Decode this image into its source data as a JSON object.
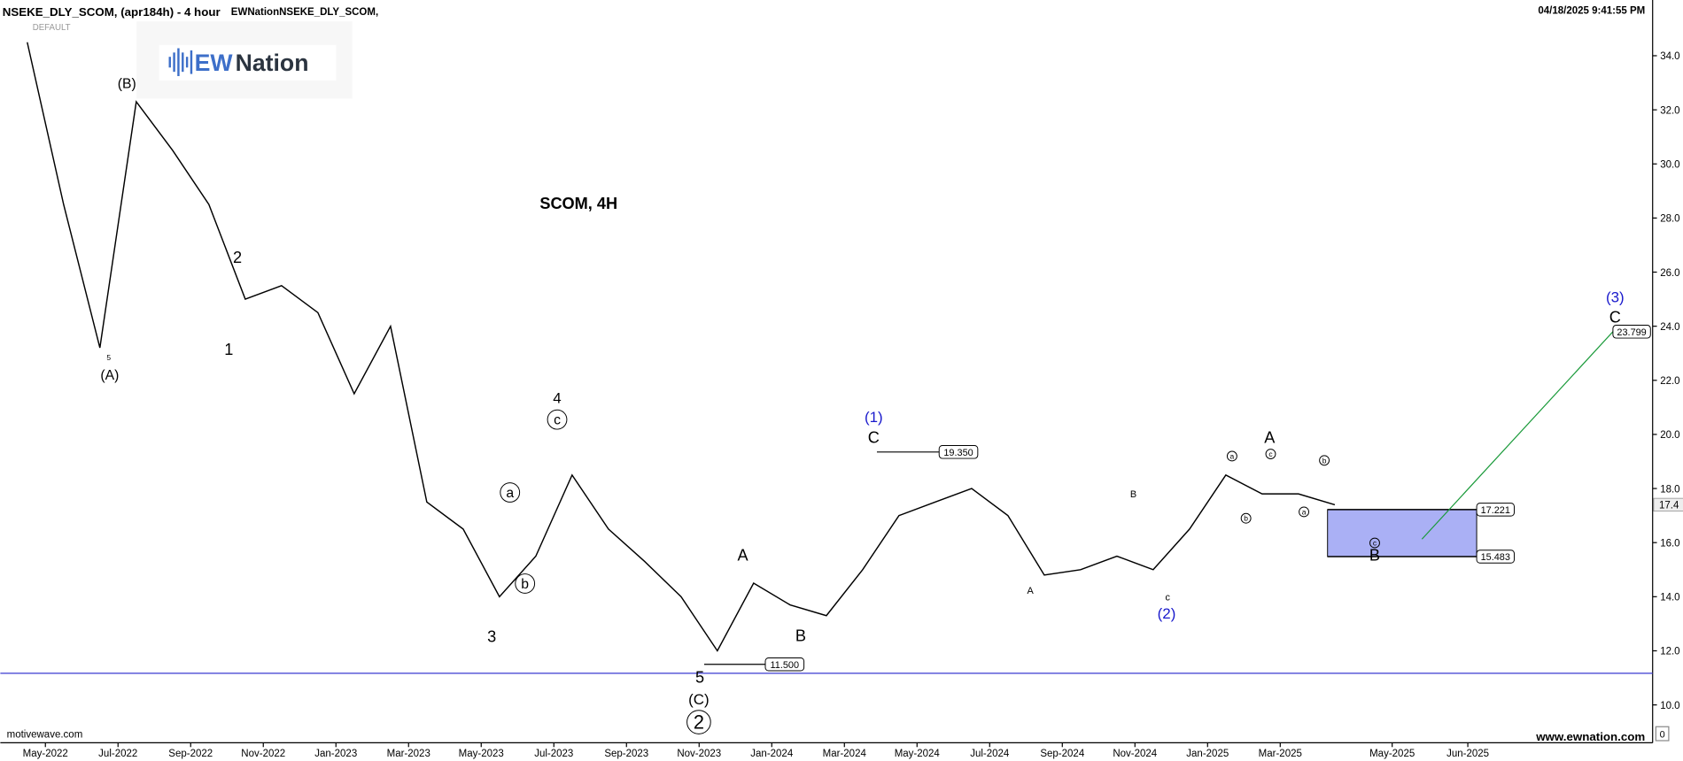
{
  "header": {
    "symbol": "NSEKE_DLY_SCOM, (apr184h) - 4 hour",
    "study": "EWNationNSEKE_DLY_SCOM,",
    "timestamp": "04/18/2025 9:41:55 PM",
    "template": "DEFAULT"
  },
  "logo": {
    "ew": "EW",
    "nation": "Nation"
  },
  "footer": {
    "left": "motivewave.com",
    "right": "www.ewnation.com",
    "corner": "0"
  },
  "chart_data": {
    "type": "line",
    "title": "SCOM, 4H",
    "color": "#000000",
    "x": [
      "2022-04",
      "2022-05",
      "2022-06",
      "2022-07",
      "2022-08",
      "2022-09",
      "2022-10",
      "2022-11",
      "2022-12",
      "2023-01",
      "2023-02",
      "2023-03",
      "2023-04",
      "2023-05",
      "2023-06",
      "2023-07",
      "2023-08",
      "2023-09",
      "2023-10",
      "2023-11",
      "2023-12",
      "2024-01",
      "2024-02",
      "2024-03",
      "2024-04",
      "2024-05",
      "2024-06",
      "2024-07",
      "2024-08",
      "2024-09",
      "2024-10",
      "2024-11",
      "2024-12",
      "2025-01",
      "2025-02",
      "2025-03",
      "2025-04"
    ],
    "values": [
      34.5,
      28.5,
      23.2,
      32.3,
      30.5,
      28.5,
      25.0,
      25.5,
      24.5,
      21.5,
      24.0,
      17.5,
      16.5,
      14.0,
      15.5,
      18.5,
      16.5,
      15.3,
      14.0,
      12.0,
      14.5,
      13.7,
      13.3,
      15.0,
      17.0,
      17.5,
      18.0,
      17.0,
      14.8,
      15.0,
      15.5,
      15.0,
      16.5,
      18.5,
      17.8,
      17.8,
      17.4
    ],
    "ylim": [
      8.6,
      36.06
    ],
    "yticks": [
      {
        "value": 10,
        "label": "10.0"
      },
      {
        "value": 12,
        "label": "12.0"
      },
      {
        "value": 14,
        "label": "14.0"
      },
      {
        "value": 16,
        "label": "16.0"
      },
      {
        "value": 18,
        "label": "18.0"
      },
      {
        "value": 20,
        "label": "20.0"
      },
      {
        "value": 22,
        "label": "22.0"
      },
      {
        "value": 24,
        "label": "24.0"
      },
      {
        "value": 26,
        "label": "26.0"
      },
      {
        "value": 28,
        "label": "28.0"
      },
      {
        "value": 30,
        "label": "30.0"
      },
      {
        "value": 32,
        "label": "32.0"
      },
      {
        "value": 34,
        "label": "34.0"
      }
    ],
    "xticks": [
      {
        "value": "2022-05",
        "label": "May-2022"
      },
      {
        "value": "2022-07",
        "label": "Jul-2022"
      },
      {
        "value": "2022-09",
        "label": "Sep-2022"
      },
      {
        "value": "2022-11",
        "label": "Nov-2022"
      },
      {
        "value": "2023-01",
        "label": "Jan-2023"
      },
      {
        "value": "2023-03",
        "label": "Mar-2023"
      },
      {
        "value": "2023-05",
        "label": "May-2023"
      },
      {
        "value": "2023-07",
        "label": "Jul-2023"
      },
      {
        "value": "2023-09",
        "label": "Sep-2023"
      },
      {
        "value": "2023-11",
        "label": "Nov-2023"
      },
      {
        "value": "2024-01",
        "label": "Jan-2024"
      },
      {
        "value": "2024-03",
        "label": "Mar-2024"
      },
      {
        "value": "2024-05",
        "label": "May-2024"
      },
      {
        "value": "2024-07",
        "label": "Jul-2024"
      },
      {
        "value": "2024-09",
        "label": "Sep-2024"
      },
      {
        "value": "2024-11",
        "label": "Nov-2024"
      },
      {
        "value": "2025-01",
        "label": "Jan-2025"
      },
      {
        "value": "2025-03",
        "label": "Mar-2025"
      },
      {
        "value": "2025-05",
        "label": "May-2025"
      },
      {
        "value": "2025-06",
        "label": "Jun-2025"
      }
    ],
    "grid": false,
    "last_price": 17.4,
    "support_line": 11.17,
    "levels": [
      {
        "value": 19.35,
        "label": "19.350"
      },
      {
        "value": 11.5,
        "label": "11.500"
      }
    ],
    "zone": {
      "color": "#aab0f5",
      "top": {
        "value": 17.221,
        "label": "17.221"
      },
      "bottom": {
        "value": 15.483,
        "label": "15.483"
      }
    },
    "target": {
      "value": 23.799,
      "label": "23.799"
    },
    "wave_labels": [
      "(B)",
      "5",
      "(A)",
      "2",
      "1",
      "4",
      "c",
      "a",
      "b",
      "3",
      "A",
      "B",
      "5",
      "(C)",
      "2",
      "(1)",
      "C",
      "B",
      "A",
      "c",
      "(2)",
      "A",
      "a",
      "c",
      "b",
      "a",
      "b",
      "c",
      "B",
      "(3)",
      "C"
    ]
  }
}
